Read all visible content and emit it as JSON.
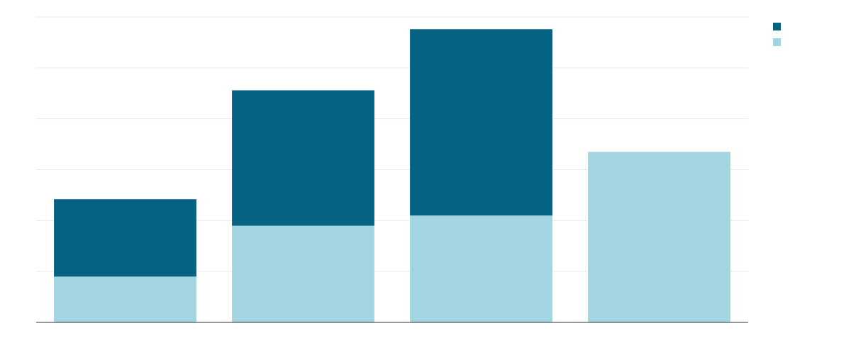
{
  "chart_data": {
    "type": "bar",
    "stacked": true,
    "categories": [
      "",
      "",
      "",
      ""
    ],
    "series": [
      {
        "values": [
          9,
          19,
          21,
          33.5
        ],
        "color": "#a2d4e2"
      },
      {
        "values": [
          15.2,
          26.6,
          36.6,
          0
        ],
        "color": "#066282"
      }
    ],
    "ylim": [
      0,
      60
    ],
    "grid": true,
    "legend": "top-right"
  }
}
